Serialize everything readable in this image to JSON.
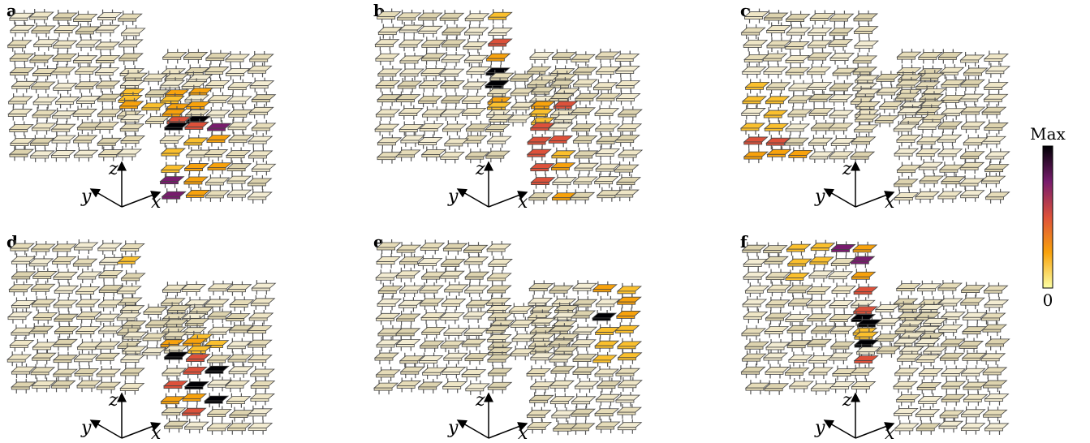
{
  "panels": [
    {
      "label": "a"
    },
    {
      "label": "b"
    },
    {
      "label": "c"
    },
    {
      "label": "d"
    },
    {
      "label": "e"
    },
    {
      "label": "f"
    }
  ],
  "axes": {
    "x": "x",
    "y": "y",
    "z": "z"
  },
  "colorbar": {
    "max": "Max",
    "min": "0"
  }
}
